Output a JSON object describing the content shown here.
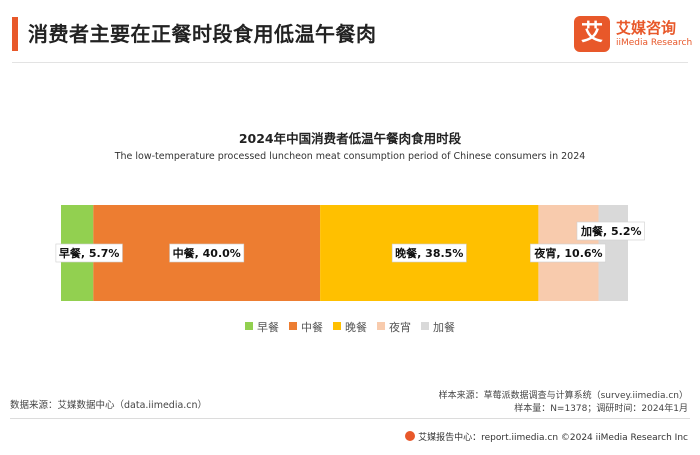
{
  "header": {
    "title": "消费者主要在正餐时段食用低温午餐肉",
    "accent_color": "#e8582a"
  },
  "logo": {
    "mark": "艾",
    "name_cn": "艾媒咨询",
    "name_en": "iiMedia Research",
    "color": "#e8582a"
  },
  "chart_data": {
    "type": "bar",
    "orientation": "horizontal-stacked-100",
    "title": "2024年中国消费者低温午餐肉食用时段",
    "subtitle": "The low-temperature processed luncheon meat consumption period of Chinese consumers in 2024",
    "unit": "%",
    "series": [
      {
        "name": "早餐",
        "value": 5.7,
        "label": "早餐, 5.7%",
        "color": "#92d050"
      },
      {
        "name": "中餐",
        "value": 40.0,
        "label": "中餐, 40.0%",
        "color": "#ed7d31"
      },
      {
        "name": "晚餐",
        "value": 38.5,
        "label": "晚餐, 38.5%",
        "color": "#ffc000"
      },
      {
        "name": "夜宵",
        "value": 10.6,
        "label": "夜宵, 10.6%",
        "color": "#f8cbad"
      },
      {
        "name": "加餐",
        "value": 5.2,
        "label": "加餐, 5.2%",
        "color": "#d9d9d9"
      }
    ],
    "legend_position": "bottom"
  },
  "sources": {
    "data_source": "数据来源：艾媒数据中心（data.iimedia.cn）",
    "sample_source": "样本来源：草莓派数据调查与计算系统（survey.iimedia.cn）",
    "sample_info": "样本量：N=1378；调研时间：2024年1月"
  },
  "footer": {
    "text": "艾媒报告中心：report.iimedia.cn  ©2024  iiMedia Research  Inc"
  }
}
